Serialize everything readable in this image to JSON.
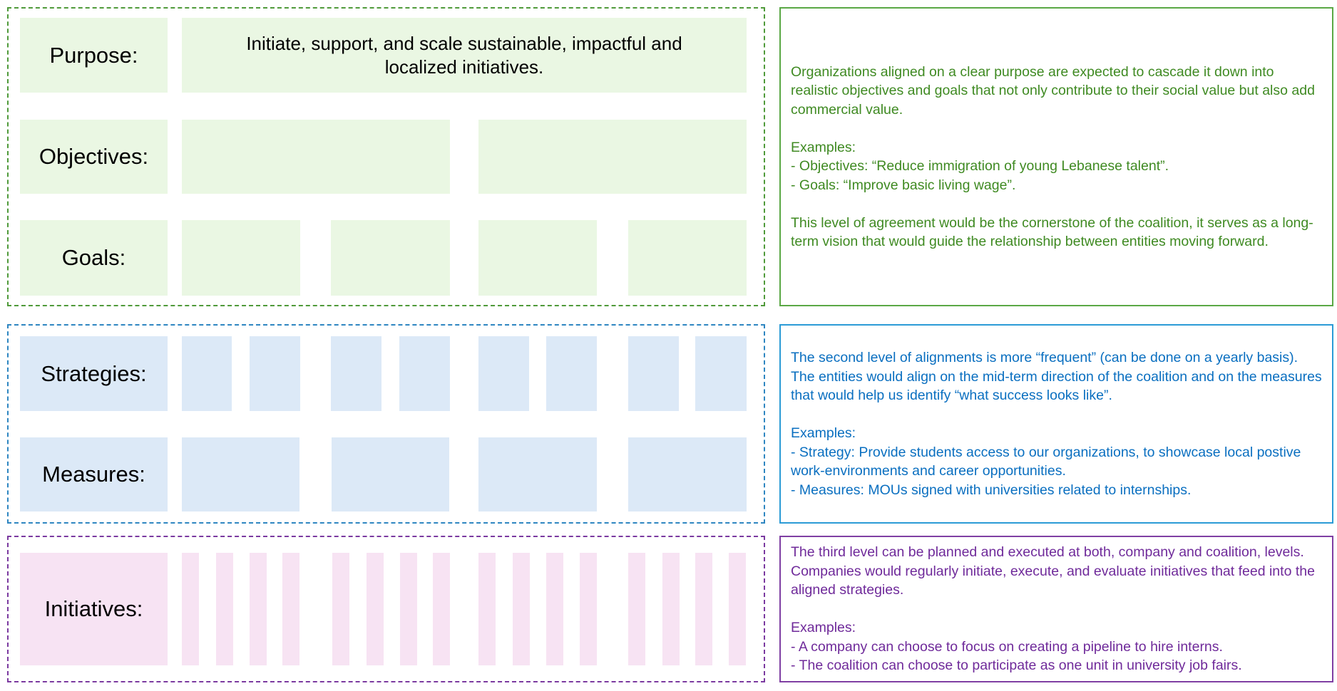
{
  "levels": {
    "purpose": {
      "label": "Purpose:",
      "text": "Initiate, support, and scale sustainable, impactful and localized initiatives."
    },
    "objectives": {
      "label": "Objectives:"
    },
    "goals": {
      "label": "Goals:"
    },
    "strategies": {
      "label": "Strategies:"
    },
    "measures": {
      "label": "Measures:"
    },
    "initiatives": {
      "label": "Initiatives:"
    }
  },
  "descriptions": {
    "level1": {
      "intro": "Organizations aligned on a clear purpose are expected to cascade it down into realistic objectives and goals that not only contribute to their social value but also add commercial value.",
      "examples_heading": "Examples:",
      "example1": "- Objectives: “Reduce immigration of young Lebanese talent”.",
      "example2": "- Goals: “Improve basic living wage”.",
      "closing": "This level of agreement would be the cornerstone of the coalition, it serves as a long-term vision that would guide the relationship between entities moving forward."
    },
    "level2": {
      "intro": "The second level of alignments is more “frequent” (can be done on a yearly basis). The entities would align on the mid-term direction of the coalition and on the measures that would help us identify “what success looks like”.",
      "examples_heading": "Examples:",
      "example1": "- Strategy: Provide students access to our organizations, to showcase local postive work-environments and career opportunities.",
      "example2": "- Measures: MOUs signed with universities related to internships."
    },
    "level3": {
      "intro": "The third level can be planned and executed at both, company and coalition, levels. Companies would regularly initiate, execute, and evaluate initiatives that feed into the aligned strategies.",
      "examples_heading": "Examples:",
      "example1": "- A company can choose to focus on creating a pipeline to hire interns.",
      "example2": "- The coalition can choose to participate as one unit in university job fairs."
    }
  },
  "colors": {
    "green_fill": "#eaf7e3",
    "blue_fill": "#dce9f7",
    "pink_fill": "#f7e3f3",
    "green_text": "#3f8a22",
    "blue_text": "#0a6fc0",
    "purple_text": "#6f2a9a"
  }
}
